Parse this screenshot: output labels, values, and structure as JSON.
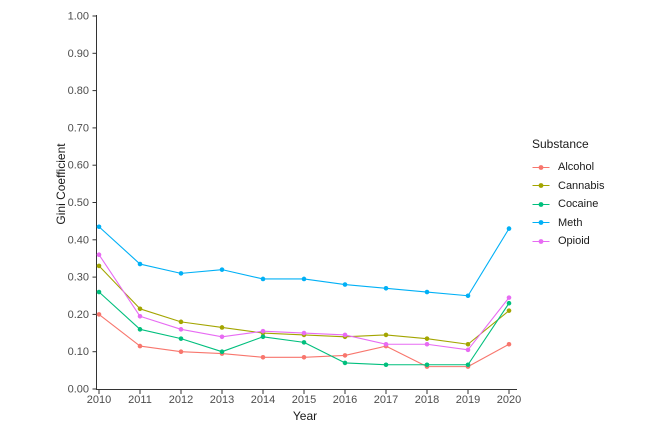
{
  "figure": {
    "background": "#ffffff",
    "axis_color": "#333333",
    "tick_label_color": "#4d4d4d",
    "text_color": "#1a1a1a"
  },
  "chart_data": {
    "type": "line",
    "title": "",
    "xlabel": "Year",
    "ylabel": "Gini Coefficient",
    "legend_title": "Substance",
    "legend_position": "right",
    "grid": false,
    "markers": true,
    "ylim": [
      0.0,
      1.0
    ],
    "ytick_step": 0.1,
    "ytick_labels": [
      "0.00",
      "0.10",
      "0.20",
      "0.30",
      "0.40",
      "0.50",
      "0.60",
      "0.70",
      "0.80",
      "0.90",
      "1.00"
    ],
    "x": [
      2010,
      2011,
      2012,
      2013,
      2014,
      2015,
      2016,
      2017,
      2018,
      2019,
      2020
    ],
    "series": [
      {
        "name": "Alcohol",
        "color": "#F8766D",
        "values": [
          0.2,
          0.115,
          0.1,
          0.095,
          0.085,
          0.085,
          0.09,
          0.115,
          0.06,
          0.06,
          0.12
        ]
      },
      {
        "name": "Cannabis",
        "color": "#A3A500",
        "values": [
          0.33,
          0.215,
          0.18,
          0.165,
          0.15,
          0.145,
          0.14,
          0.145,
          0.135,
          0.12,
          0.21
        ]
      },
      {
        "name": "Cocaine",
        "color": "#00BF7D",
        "values": [
          0.26,
          0.16,
          0.135,
          0.1,
          0.14,
          0.125,
          0.07,
          0.065,
          0.065,
          0.065,
          0.23
        ]
      },
      {
        "name": "Meth",
        "color": "#00B0F6",
        "values": [
          0.435,
          0.335,
          0.31,
          0.32,
          0.295,
          0.295,
          0.28,
          0.27,
          0.26,
          0.25,
          0.43
        ]
      },
      {
        "name": "Opioid",
        "color": "#E76BF3",
        "values": [
          0.36,
          0.195,
          0.16,
          0.14,
          0.155,
          0.15,
          0.145,
          0.12,
          0.12,
          0.105,
          0.245
        ]
      }
    ]
  }
}
